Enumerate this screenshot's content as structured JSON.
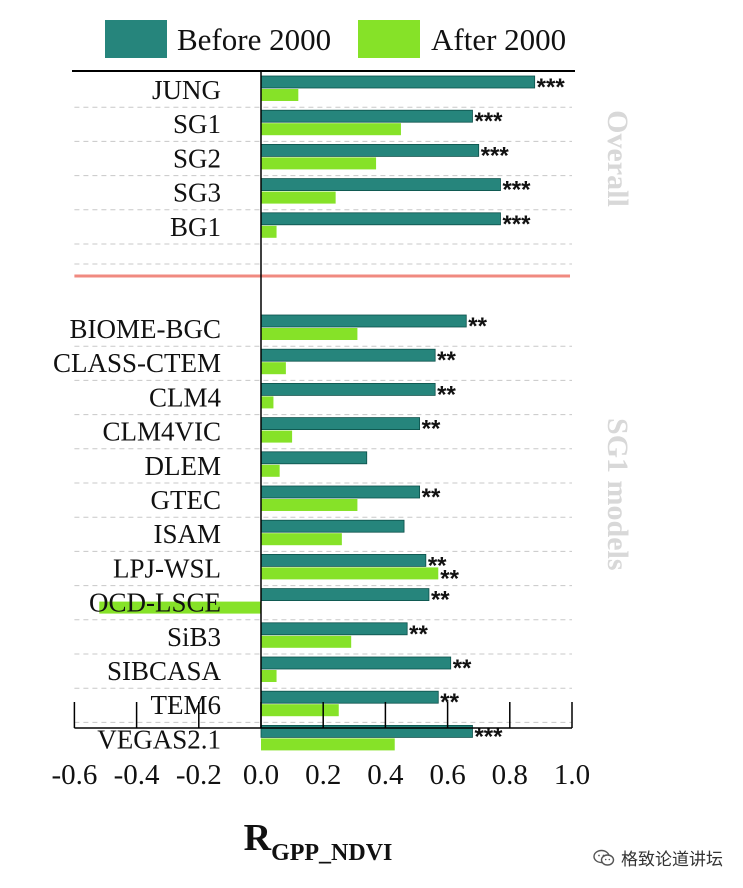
{
  "chart_data": {
    "type": "bar",
    "orientation": "horizontal",
    "xlabel": "R",
    "xlabel_subscript": "GPP_NDVI",
    "xlim": [
      -0.6,
      1.0
    ],
    "xticks": [
      "-0.6",
      "-0.4",
      "-0.2",
      "0.0",
      "0.2",
      "0.4",
      "0.6",
      "0.8",
      "1.0"
    ],
    "legend_position": "top",
    "groups": [
      {
        "name": "Overall",
        "categories": [
          "JUNG",
          "SG1",
          "SG2",
          "SG3",
          "BG1"
        ]
      },
      {
        "name": "SG1 models",
        "categories": [
          "BIOME-BGC",
          "CLASS-CTEM",
          "CLM4",
          "CLM4VIC",
          "DLEM",
          "GTEC",
          "ISAM",
          "LPJ-WSL",
          "OCD-LSCE",
          "SiB3",
          "SIBCASA",
          "TEM6",
          "VEGAS2.1"
        ]
      }
    ],
    "categories": [
      "JUNG",
      "SG1",
      "SG2",
      "SG3",
      "BG1",
      "BIOME-BGC",
      "CLASS-CTEM",
      "CLM4",
      "CLM4VIC",
      "DLEM",
      "GTEC",
      "ISAM",
      "LPJ-WSL",
      "OCD-LSCE",
      "SiB3",
      "SIBCASA",
      "TEM6",
      "VEGAS2.1"
    ],
    "series": [
      {
        "name": "Before 2000",
        "color": "#26857c",
        "values": [
          0.88,
          0.68,
          0.7,
          0.77,
          0.77,
          0.66,
          0.56,
          0.56,
          0.51,
          0.34,
          0.51,
          0.46,
          0.53,
          0.54,
          0.47,
          0.61,
          0.57,
          0.68
        ],
        "significance": [
          "***",
          "***",
          "***",
          "***",
          "***",
          "**",
          "**",
          "**",
          "**",
          "",
          "**",
          "",
          "**",
          "**",
          "**",
          "**",
          "**",
          "***"
        ]
      },
      {
        "name": "After 2000",
        "color": "#86e228",
        "values": [
          0.12,
          0.45,
          0.37,
          0.24,
          0.05,
          0.31,
          0.08,
          0.04,
          0.1,
          0.06,
          0.31,
          0.26,
          0.57,
          -0.52,
          0.29,
          0.05,
          0.25,
          0.43
        ],
        "significance": [
          "",
          "",
          "",
          "",
          "",
          "",
          "",
          "",
          "",
          "",
          "",
          "",
          "**",
          "",
          "",
          "",
          "",
          ""
        ]
      }
    ]
  },
  "watermark": {
    "text": "格致论道讲坛",
    "icon": "wechat-icon"
  }
}
